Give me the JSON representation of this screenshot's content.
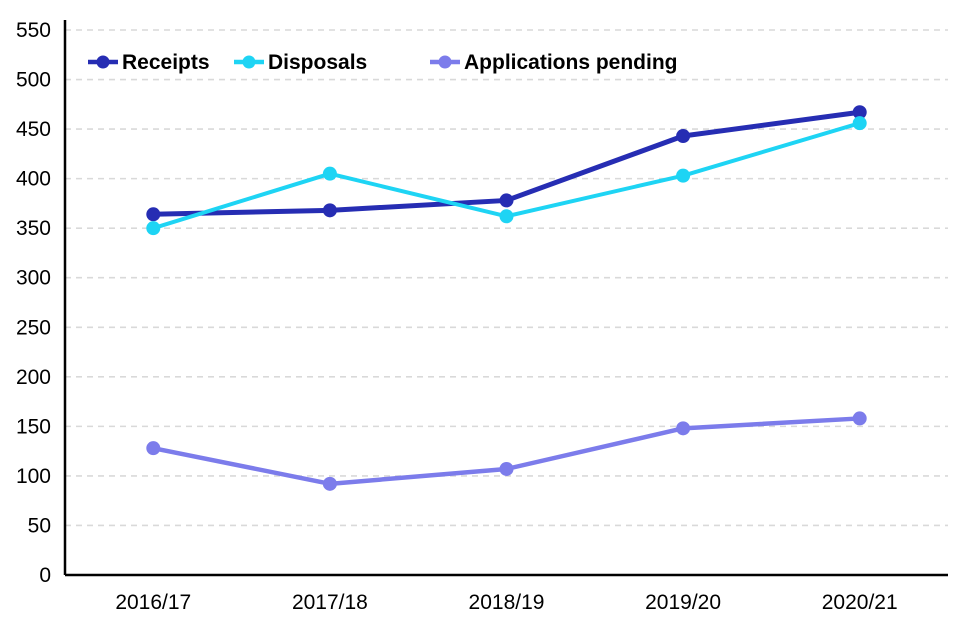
{
  "chart_data": {
    "type": "line",
    "categories": [
      "2016/17",
      "2017/18",
      "2018/19",
      "2019/20",
      "2020/21"
    ],
    "series": [
      {
        "name": "Receipts",
        "color": "#262DB3",
        "values": [
          364,
          368,
          378,
          443,
          467
        ]
      },
      {
        "name": "Disposals",
        "color": "#1ED4F4",
        "values": [
          350,
          405,
          362,
          403,
          456
        ]
      },
      {
        "name": "Applications pending",
        "color": "#7C7CEB",
        "values": [
          128,
          92,
          107,
          148,
          158
        ]
      }
    ],
    "title": "",
    "xlabel": "",
    "ylabel": "",
    "ylim": [
      0,
      550
    ],
    "ytick_step": 50,
    "grid": "horizontal-dashed",
    "legend_position": "top-left-inside"
  },
  "colors": {
    "background": "#FFFFFF",
    "grid": "#D9D9D9",
    "axis": "#000000"
  }
}
